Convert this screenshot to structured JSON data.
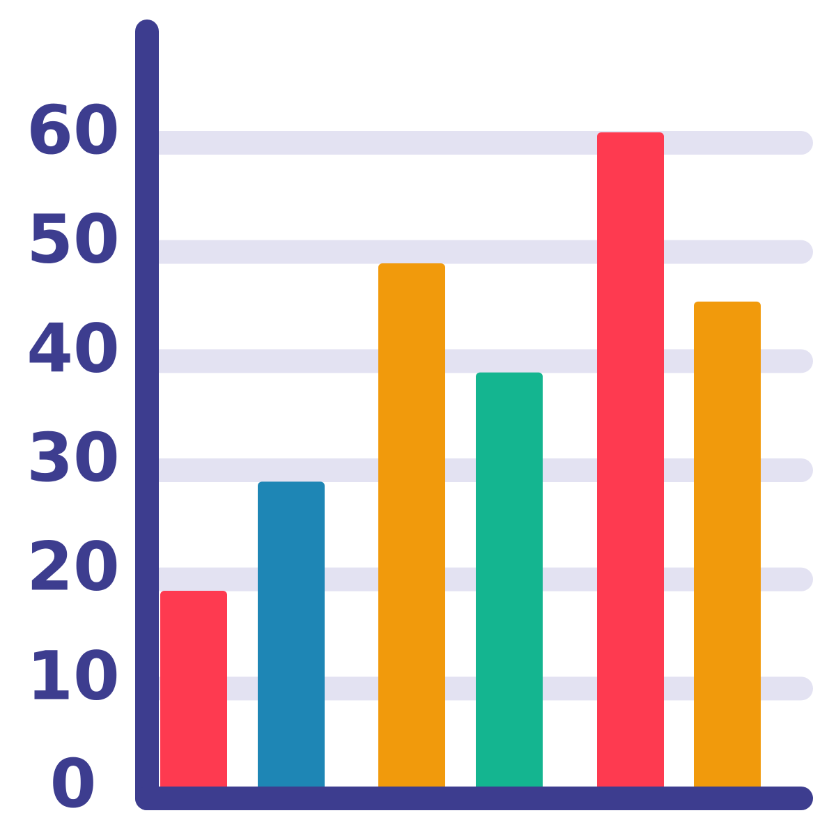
{
  "colors": {
    "axis": "#3d3d8f",
    "grid": "#e3e2f2",
    "background": "#ffffff"
  },
  "chart_data": {
    "type": "bar",
    "categories": [
      "",
      "",
      "",
      "",
      "",
      ""
    ],
    "values": [
      18,
      28,
      48,
      38,
      60,
      44.5
    ],
    "bar_colors": [
      "#fe3a50",
      "#1e86b5",
      "#f19a0c",
      "#14b590",
      "#fe3a50",
      "#f19a0c"
    ],
    "title": "",
    "xlabel": "",
    "ylabel": "",
    "ylim": [
      0,
      60
    ],
    "yticks": [
      0,
      10,
      20,
      30,
      40,
      50,
      60
    ],
    "ytick_labels": [
      "0",
      "10",
      "20",
      "30",
      "40",
      "50",
      "60"
    ],
    "grid": true,
    "legend": "none"
  }
}
